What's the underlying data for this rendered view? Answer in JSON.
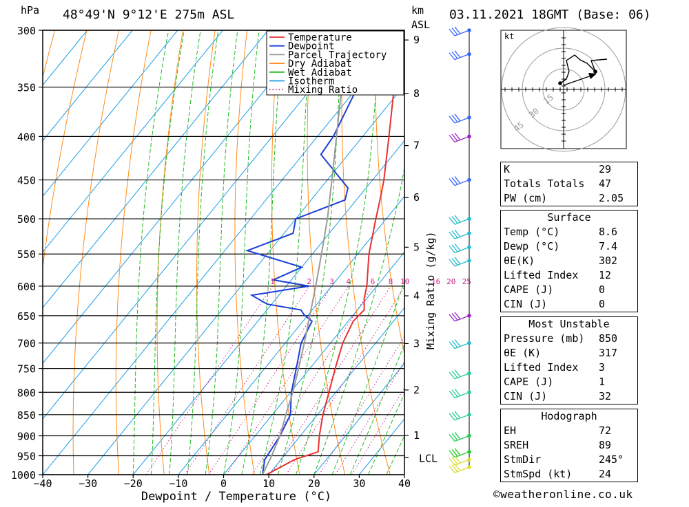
{
  "header": {
    "location": "48°49'N  9°12'E  275m  ASL",
    "datetime": "03.11.2021  18GMT  (Base: 06)",
    "hpa_unit": "hPa",
    "km_unit": "km",
    "km_unit2": "ASL"
  },
  "chart_data": {
    "type": "line",
    "xlabel": "Dewpoint / Temperature (°C)",
    "ylabel": "hPa",
    "y2label": "Mixing Ratio (g/kg)",
    "x_ticks": [
      -40,
      -30,
      -20,
      -10,
      0,
      10,
      20,
      30,
      40
    ],
    "pressure_levels": [
      300,
      350,
      400,
      450,
      500,
      550,
      600,
      650,
      700,
      750,
      800,
      850,
      900,
      950,
      1000
    ],
    "height_km": [
      {
        "km": "1",
        "p": 899
      },
      {
        "km": "2",
        "p": 795
      },
      {
        "km": "3",
        "p": 701
      },
      {
        "km": "4",
        "p": 616
      },
      {
        "km": "5",
        "p": 540
      },
      {
        "km": "6",
        "p": 472
      },
      {
        "km": "7",
        "p": 410
      },
      {
        "km": "8",
        "p": 356
      },
      {
        "km": "9",
        "p": 308
      }
    ],
    "lcl": {
      "label": "LCL",
      "p": 955
    },
    "mixing_ratio_labels": [
      "1",
      "2",
      "3",
      "4",
      "6",
      "8",
      "10",
      "16",
      "20",
      "25"
    ],
    "legend": [
      "Temperature",
      "Dewpoint",
      "Parcel Trajectory",
      "Dry Adiabat",
      "Wet Adiabat",
      "Isotherm",
      "Mixing Ratio"
    ],
    "colors": {
      "temperature": "#e83030",
      "dewpoint": "#1a3fd6",
      "parcel": "#9a9a9a",
      "dry_adiabat": "#ff8c1a",
      "wet_adiabat": "#22bb22",
      "isotherm": "#1a9ee6",
      "mixing_ratio": "#cc2288"
    },
    "series": [
      {
        "name": "Temperature",
        "points": [
          [
            1000,
            9.5
          ],
          [
            960,
            13.0
          ],
          [
            940,
            16.8
          ],
          [
            900,
            14.2
          ],
          [
            850,
            11.2
          ],
          [
            800,
            8.5
          ],
          [
            750,
            5.6
          ],
          [
            700,
            2.7
          ],
          [
            660,
            1.1
          ],
          [
            640,
            1.5
          ],
          [
            620,
            -0.6
          ],
          [
            600,
            -2.2
          ],
          [
            550,
            -7.5
          ],
          [
            500,
            -12.3
          ],
          [
            470,
            -15.3
          ],
          [
            450,
            -17.5
          ],
          [
            400,
            -24.2
          ],
          [
            350,
            -31.9
          ],
          [
            320,
            -37.0
          ],
          [
            300,
            -40.5
          ]
        ]
      },
      {
        "name": "Dewpoint",
        "points": [
          [
            1000,
            8.6
          ],
          [
            960,
            6.4
          ],
          [
            900,
            5.5
          ],
          [
            850,
            4.0
          ],
          [
            800,
            0.2
          ],
          [
            750,
            -3.0
          ],
          [
            700,
            -6.5
          ],
          [
            660,
            -8.0
          ],
          [
            648,
            -11.0
          ],
          [
            640,
            -12.5
          ],
          [
            630,
            -21.0
          ],
          [
            615,
            -26.0
          ],
          [
            600,
            -15.0
          ],
          [
            590,
            -24.0
          ],
          [
            570,
            -20.0
          ],
          [
            545,
            -35.0
          ],
          [
            520,
            -28.0
          ],
          [
            500,
            -30.0
          ],
          [
            475,
            -22.5
          ],
          [
            460,
            -24.0
          ],
          [
            420,
            -36.0
          ],
          [
            400,
            -36.5
          ],
          [
            350,
            -40.0
          ],
          [
            320,
            -44.0
          ],
          [
            300,
            -45.0
          ]
        ]
      },
      {
        "name": "Parcel Trajectory",
        "points": [
          [
            1000,
            8.6
          ],
          [
            955,
            7.4
          ],
          [
            900,
            5.5
          ],
          [
            850,
            3.0
          ],
          [
            800,
            0.5
          ],
          [
            750,
            -2.5
          ],
          [
            700,
            -5.8
          ],
          [
            650,
            -9.5
          ],
          [
            600,
            -13.5
          ],
          [
            550,
            -18.0
          ],
          [
            500,
            -23.0
          ],
          [
            450,
            -29.0
          ],
          [
            400,
            -35.8
          ],
          [
            350,
            -43.5
          ],
          [
            300,
            -52.0
          ]
        ]
      }
    ]
  },
  "hodograph": {
    "unit": "kt",
    "rings": [
      "15",
      "30",
      "45"
    ]
  },
  "indices": {
    "general": [
      {
        "label": "K",
        "value": "29"
      },
      {
        "label": "Totals Totals",
        "value": "47"
      },
      {
        "label": "PW (cm)",
        "value": "2.05"
      }
    ],
    "surface_title": "Surface",
    "surface": [
      {
        "label": "Temp (°C)",
        "value": "8.6"
      },
      {
        "label": "Dewp (°C)",
        "value": "7.4"
      },
      {
        "label": "θE(K)",
        "value": "302"
      },
      {
        "label": "Lifted Index",
        "value": "12"
      },
      {
        "label": "CAPE (J)",
        "value": "0"
      },
      {
        "label": "CIN (J)",
        "value": "0"
      }
    ],
    "unstable_title": "Most Unstable",
    "unstable": [
      {
        "label": "Pressure (mb)",
        "value": "850"
      },
      {
        "label": "θE (K)",
        "value": "317"
      },
      {
        "label": "Lifted Index",
        "value": "3"
      },
      {
        "label": "CAPE (J)",
        "value": "1"
      },
      {
        "label": "CIN (J)",
        "value": "32"
      }
    ],
    "hodo_title": "Hodograph",
    "hodo": [
      {
        "label": "EH",
        "value": "72"
      },
      {
        "label": "SREH",
        "value": "89"
      },
      {
        "label": "StmDir",
        "value": "245°"
      },
      {
        "label": "StmSpd (kt)",
        "value": "24"
      }
    ]
  },
  "credit": "©weatheronline.co.uk"
}
